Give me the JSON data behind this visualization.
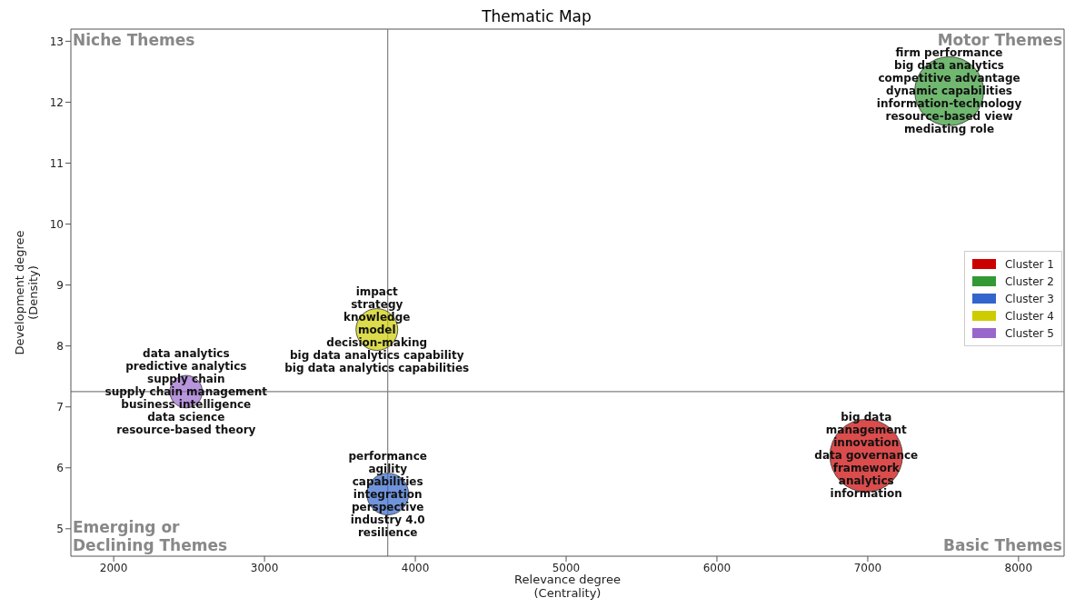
{
  "chart_data": {
    "type": "bubble",
    "title": "Thematic Map",
    "xlabel": "Relevance degree\n(Centrality)",
    "ylabel": "Development degree\n(Density)",
    "xlim": [
      1716,
      8302
    ],
    "xticks": [
      2000,
      3000,
      4000,
      5000,
      6000,
      7000,
      8000
    ],
    "ylim": [
      4.55,
      13.2
    ],
    "yticks": [
      5,
      6,
      7,
      8,
      9,
      10,
      11,
      12,
      13
    ],
    "grid": false,
    "legend": "right",
    "series": [
      {
        "name": "Cluster 1",
        "color": "#cc0000",
        "x": [
          6990
        ],
        "values": [
          6.2
        ],
        "sizes": [
          1
        ]
      },
      {
        "name": "Cluster 2",
        "color": "#339933",
        "x": [
          7540
        ],
        "values": [
          12.18
        ],
        "sizes": [
          0.9
        ]
      },
      {
        "name": "Cluster 3",
        "color": "#3366cc",
        "x": [
          3817
        ],
        "values": [
          5.57
        ],
        "sizes": [
          0.33
        ]
      },
      {
        "name": "Cluster 4",
        "color": "#cccc00",
        "x": [
          3745
        ],
        "values": [
          8.27
        ],
        "sizes": [
          0.33
        ]
      },
      {
        "name": "Cluster 5",
        "color": "#9966cc",
        "x": [
          2480
        ],
        "values": [
          7.25
        ],
        "sizes": [
          0.2
        ]
      }
    ],
    "ref_lines": [
      {
        "axis": "x",
        "value": 3817,
        "color": "#808080"
      },
      {
        "axis": "y",
        "value": 7.25,
        "color": "#808080"
      }
    ],
    "annotations": [
      "Niche Themes",
      "Motor Themes",
      "Emerging or\nDeclining Themes",
      "Basic Themes",
      {
        "text": "big data\nmanagement\ninnovation\ndata governance\nframework\nanalytics\ninformation",
        "x": 6990,
        "y": 6.2
      },
      {
        "text": "firm performance\nbig data analytics\ncompetitive advantage\ndynamic capabilities\ninformation-technology\nresource-based view\nmediating role",
        "x": 7540,
        "y": 12.18
      },
      {
        "text": "performance\nagility\ncapabilities\nintegration\nperspective\nindustry 4.0\nresilience",
        "x": 3817,
        "y": 5.57
      },
      {
        "text": "impact\nstrategy\nknowledge\nmodel\ndecision-making\nbig data analytics capability\nbig data analytics capabilities",
        "x": 3745,
        "y": 8.27
      },
      {
        "text": "data analytics\npredictive analytics\nsupply chain\nsupply chain management\nbusiness intelligence\ndata science\nresource-based theory",
        "x": 2480,
        "y": 7.25
      }
    ]
  }
}
